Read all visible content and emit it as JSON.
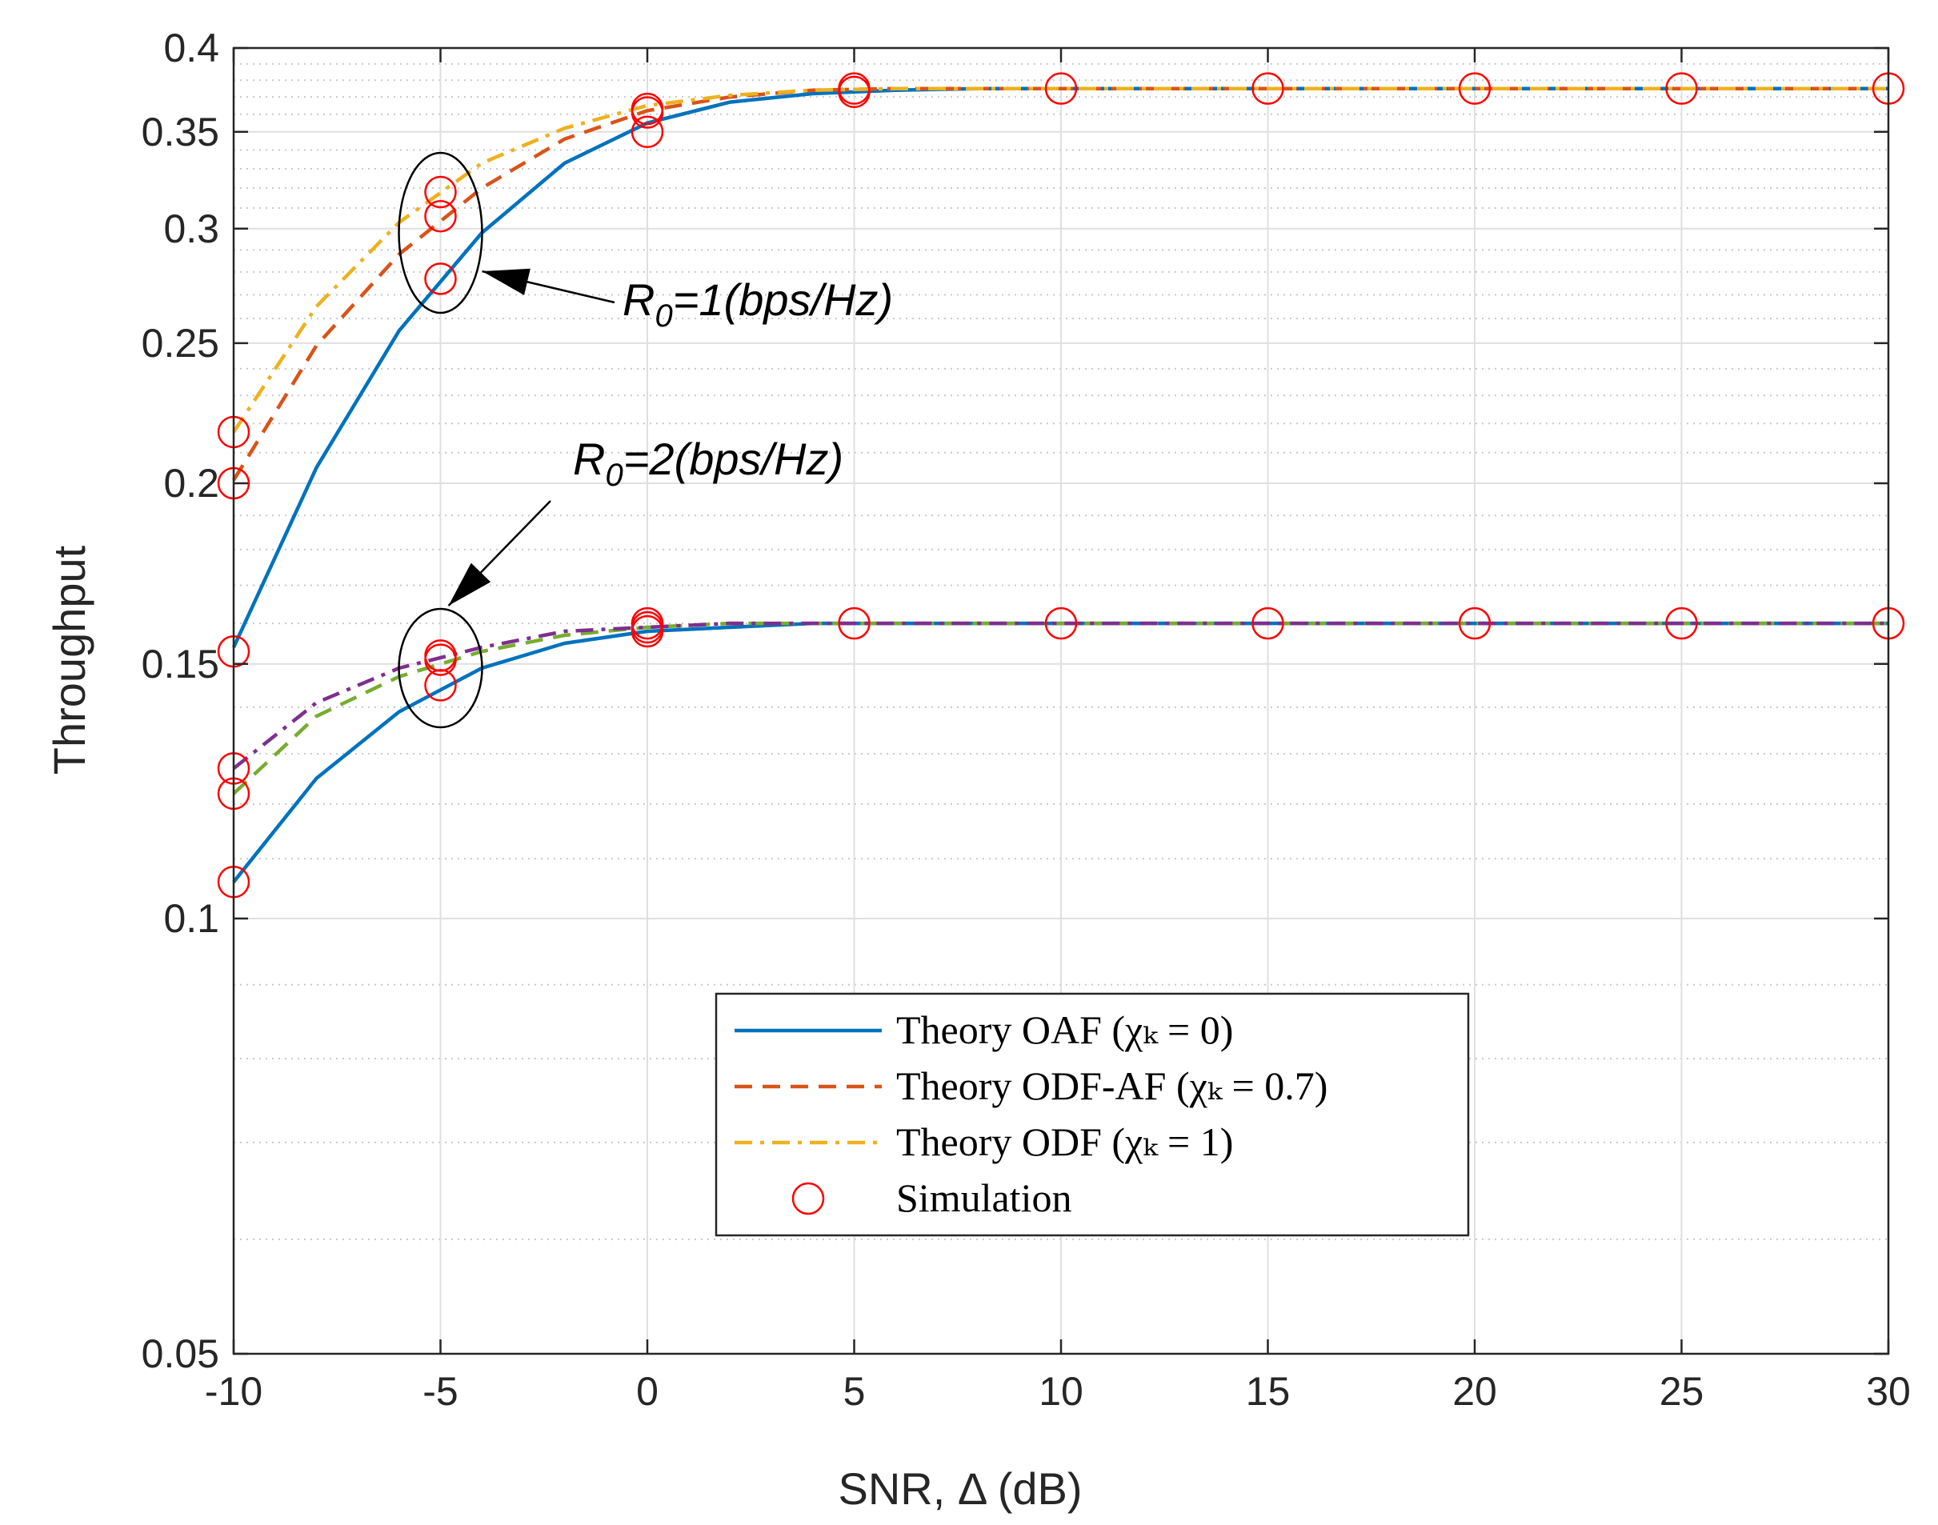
{
  "chart_data": {
    "type": "line",
    "title": "",
    "xlabel": "SNR, Δ (dB)",
    "ylabel": "Throughput",
    "yscale": "log",
    "xlim": [
      -10,
      30
    ],
    "ylim": [
      0.05,
      0.4
    ],
    "grid": true,
    "x_ticks": [
      -10,
      -5,
      0,
      5,
      10,
      15,
      20,
      25,
      30
    ],
    "x_tick_labels": [
      "-10",
      "-5",
      "0",
      "5",
      "10",
      "15",
      "20",
      "25",
      "30"
    ],
    "y_ticks": [
      0.05,
      0.1,
      0.15,
      0.2,
      0.25,
      0.3,
      0.35,
      0.4
    ],
    "y_tick_labels": [
      "0.05",
      "0.1",
      "0.15",
      "0.2",
      "0.25",
      "0.3",
      "0.35",
      "0.4"
    ],
    "y_minor_grid": [
      0.06,
      0.07,
      0.08,
      0.09,
      0.11,
      0.12,
      0.13,
      0.14,
      0.16,
      0.17,
      0.18,
      0.19,
      0.21,
      0.22,
      0.23,
      0.24,
      0.26,
      0.27,
      0.28,
      0.29,
      0.31,
      0.32,
      0.33,
      0.34,
      0.36,
      0.37,
      0.38,
      0.39
    ],
    "series": [
      {
        "name": "OAF R0=1",
        "style": "solid",
        "color": "#0072BD",
        "x": [
          -10,
          -8,
          -6,
          -4,
          -2,
          0,
          2,
          4,
          6,
          8,
          10,
          15,
          20,
          25,
          30
        ],
        "y": [
          0.154,
          0.205,
          0.255,
          0.298,
          0.333,
          0.355,
          0.367,
          0.372,
          0.374,
          0.375,
          0.375,
          0.375,
          0.375,
          0.375,
          0.375
        ]
      },
      {
        "name": "ODF-AF R0=1",
        "style": "dashed",
        "color": "#D95319",
        "x": [
          -10,
          -8,
          -6,
          -4,
          -2,
          0,
          2,
          4,
          6,
          8,
          10,
          15,
          20,
          25,
          30
        ],
        "y": [
          0.201,
          0.249,
          0.288,
          0.32,
          0.346,
          0.362,
          0.37,
          0.374,
          0.375,
          0.375,
          0.375,
          0.375,
          0.375,
          0.375,
          0.375
        ]
      },
      {
        "name": "ODF R0=1",
        "style": "dashdot",
        "color": "#EDB120",
        "x": [
          -10,
          -8,
          -6,
          -4,
          -2,
          0,
          2,
          4,
          6,
          8,
          10,
          15,
          20,
          25,
          30
        ],
        "y": [
          0.217,
          0.265,
          0.303,
          0.333,
          0.352,
          0.365,
          0.371,
          0.374,
          0.375,
          0.375,
          0.375,
          0.375,
          0.375,
          0.375,
          0.375
        ]
      },
      {
        "name": "OAF R0=2",
        "style": "solid",
        "color": "#0072BD",
        "x": [
          -10,
          -8,
          -6,
          -4,
          -2,
          0,
          2,
          4,
          6,
          8,
          10,
          15,
          20,
          25,
          30
        ],
        "y": [
          0.106,
          0.125,
          0.139,
          0.149,
          0.155,
          0.158,
          0.159,
          0.16,
          0.16,
          0.16,
          0.16,
          0.16,
          0.16,
          0.16,
          0.16
        ]
      },
      {
        "name": "ODF-AF R0=2",
        "style": "dashed",
        "color": "#77AC30",
        "x": [
          -10,
          -8,
          -6,
          -4,
          -2,
          0,
          2,
          4,
          6,
          8,
          10,
          15,
          20,
          25,
          30
        ],
        "y": [
          0.122,
          0.138,
          0.147,
          0.153,
          0.157,
          0.159,
          0.16,
          0.16,
          0.16,
          0.16,
          0.16,
          0.16,
          0.16,
          0.16,
          0.16
        ]
      },
      {
        "name": "ODF R0=2",
        "style": "dashdot",
        "color": "#7E2F8E",
        "x": [
          -10,
          -8,
          -6,
          -4,
          -2,
          0,
          2,
          4,
          6,
          8,
          10,
          15,
          20,
          25,
          30
        ],
        "y": [
          0.127,
          0.141,
          0.149,
          0.154,
          0.158,
          0.159,
          0.16,
          0.16,
          0.16,
          0.16,
          0.16,
          0.16,
          0.16,
          0.16,
          0.16
        ]
      }
    ],
    "simulation_points": {
      "name": "Simulation",
      "color": "#FF0000",
      "points": [
        {
          "x": -10,
          "y": 0.153
        },
        {
          "x": -10,
          "y": 0.2
        },
        {
          "x": -10,
          "y": 0.217
        },
        {
          "x": -5,
          "y": 0.277
        },
        {
          "x": -5,
          "y": 0.306
        },
        {
          "x": -5,
          "y": 0.318
        },
        {
          "x": 0,
          "y": 0.35
        },
        {
          "x": 0,
          "y": 0.361
        },
        {
          "x": 0,
          "y": 0.363
        },
        {
          "x": 5,
          "y": 0.375
        },
        {
          "x": 5,
          "y": 0.373
        },
        {
          "x": 10,
          "y": 0.375
        },
        {
          "x": 15,
          "y": 0.375
        },
        {
          "x": 20,
          "y": 0.375
        },
        {
          "x": 25,
          "y": 0.375
        },
        {
          "x": 30,
          "y": 0.375
        },
        {
          "x": -10,
          "y": 0.106
        },
        {
          "x": -10,
          "y": 0.122
        },
        {
          "x": -10,
          "y": 0.127
        },
        {
          "x": -5,
          "y": 0.145
        },
        {
          "x": -5,
          "y": 0.151
        },
        {
          "x": -5,
          "y": 0.152
        },
        {
          "x": 0,
          "y": 0.158
        },
        {
          "x": 0,
          "y": 0.159
        },
        {
          "x": 0,
          "y": 0.16
        },
        {
          "x": 5,
          "y": 0.16
        },
        {
          "x": 10,
          "y": 0.16
        },
        {
          "x": 15,
          "y": 0.16
        },
        {
          "x": 20,
          "y": 0.16
        },
        {
          "x": 25,
          "y": 0.16
        },
        {
          "x": 30,
          "y": 0.16
        }
      ]
    },
    "legend": {
      "position": "lower-center",
      "entries": [
        {
          "label": "Theory OAF (χₖ = 0)",
          "style": "solid",
          "color": "#0072BD"
        },
        {
          "label": "Theory ODF-AF (χₖ = 0.7)",
          "style": "dashed",
          "color": "#D95319"
        },
        {
          "label": "Theory ODF (χₖ = 1)",
          "style": "dashdot",
          "color": "#EDB120"
        },
        {
          "label": "Simulation",
          "style": "marker",
          "color": "#FF0000"
        }
      ]
    },
    "annotations": [
      {
        "main": "R",
        "sub": "0",
        "rest": "=1(bps/Hz)",
        "group_x": -5,
        "group_y": 0.298
      },
      {
        "main": "R",
        "sub": "0",
        "rest": "=2(bps/Hz)",
        "group_x": -5,
        "group_y": 0.149
      }
    ]
  }
}
